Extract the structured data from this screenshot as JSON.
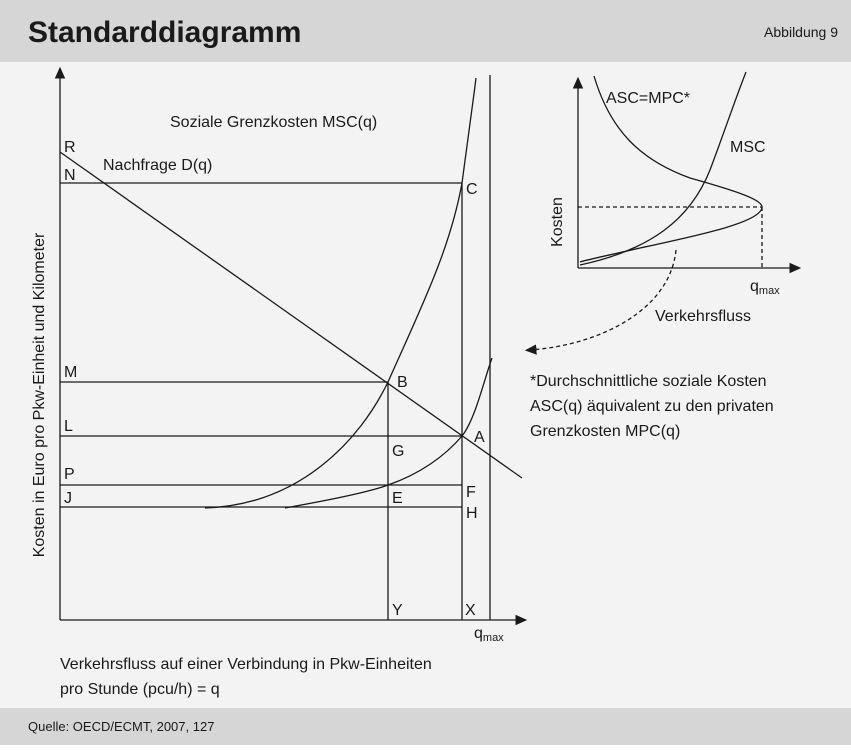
{
  "header": {
    "title": "Standarddiagramm",
    "figure": "Abbildung 9"
  },
  "main_diagram": {
    "y_axis_label": "Kosten in Euro pro Pkw-Einheit und Kilometer",
    "msc_label": "Soziale Grenzkosten MSC(q)",
    "demand_label": "Nachfrage D(q)",
    "points": {
      "R": "R",
      "N": "N",
      "M": "M",
      "L": "L",
      "P": "P",
      "J": "J",
      "C": "C",
      "B": "B",
      "G": "G",
      "A": "A",
      "F": "F",
      "E": "E",
      "H": "H",
      "Y": "Y",
      "X": "X"
    },
    "qmax": {
      "main": "q",
      "sub": "max"
    },
    "caption": [
      "Verkehrsfluss auf einer Verbindung in Pkw-Einheiten",
      "pro Stunde (pcu/h) = q"
    ]
  },
  "inset_diagram": {
    "asc_label": "ASC=MPC*",
    "msc_label": "MSC",
    "y_axis_label": "Kosten",
    "qmax": {
      "main": "q",
      "sub": "max"
    },
    "x_axis_label": "Verkehrsfluss"
  },
  "note": [
    "*Durchschnittliche soziale Kosten",
    "ASC(q) äquivalent zu den privaten",
    "Grenzkosten MPC(q)"
  ],
  "footer": {
    "source": "Quelle: OECD/ECMT, 2007, 127"
  }
}
